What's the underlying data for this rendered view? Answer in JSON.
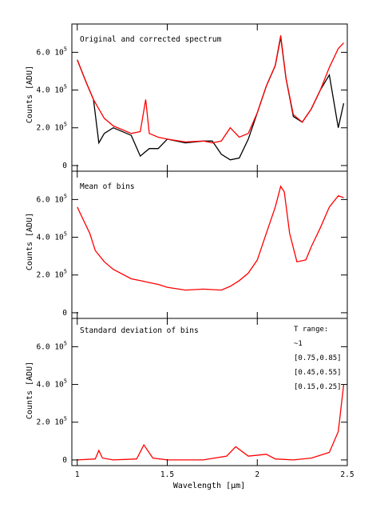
{
  "colors": {
    "t1": "#ff0000",
    "t2": "#00e5ff",
    "t3": "#e000e0",
    "t4": "#00d000",
    "raw": "#000000"
  },
  "legend": {
    "title": "T range:",
    "items": [
      {
        "label": "~1",
        "color_key": "t1"
      },
      {
        "label": "[0.75,0.85]",
        "color_key": "t2"
      },
      {
        "label": "[0.45,0.55]",
        "color_key": "t3"
      },
      {
        "label": "[0.15,0.25]",
        "color_key": "t4"
      }
    ]
  },
  "chart_data": [
    {
      "type": "line",
      "title": "Original and corrected spectrum",
      "xlabel": "",
      "ylabel": "Counts [ADU]",
      "xlim": [
        0.97,
        2.5
      ],
      "ylim": [
        -30000,
        750000
      ],
      "y_ticks": [
        0,
        200000,
        400000,
        600000
      ],
      "y_tick_labels": [
        {
          "mant": "0",
          "exp": ""
        },
        {
          "mant": "2.0 10",
          "exp": "5"
        },
        {
          "mant": "4.0 10",
          "exp": "5"
        },
        {
          "mant": "6.0 10",
          "exp": "5"
        }
      ],
      "series": [
        {
          "color_key": "raw",
          "x": [
            1.0,
            1.05,
            1.09,
            1.12,
            1.15,
            1.2,
            1.3,
            1.35,
            1.4,
            1.45,
            1.5,
            1.6,
            1.7,
            1.75,
            1.8,
            1.85,
            1.9,
            1.95,
            2.0,
            2.05,
            2.1,
            2.13,
            2.16,
            2.2,
            2.25,
            2.3,
            2.35,
            2.4,
            2.45,
            2.48
          ],
          "y": [
            560000,
            440000,
            350000,
            120000,
            170000,
            200000,
            160000,
            50000,
            90000,
            90000,
            140000,
            120000,
            130000,
            130000,
            60000,
            30000,
            40000,
            140000,
            280000,
            420000,
            530000,
            680000,
            460000,
            260000,
            230000,
            300000,
            400000,
            480000,
            200000,
            330000
          ]
        },
        {
          "color_key": "t1",
          "x": [
            1.0,
            1.05,
            1.09,
            1.12,
            1.15,
            1.2,
            1.3,
            1.35,
            1.38,
            1.4,
            1.45,
            1.5,
            1.6,
            1.7,
            1.75,
            1.8,
            1.85,
            1.9,
            1.95,
            2.0,
            2.05,
            2.1,
            2.13,
            2.16,
            2.2,
            2.25,
            2.3,
            2.35,
            2.4,
            2.45,
            2.48
          ],
          "y": [
            560000,
            440000,
            350000,
            300000,
            250000,
            210000,
            170000,
            180000,
            350000,
            170000,
            150000,
            140000,
            125000,
            130000,
            120000,
            130000,
            200000,
            150000,
            170000,
            280000,
            420000,
            530000,
            690000,
            460000,
            270000,
            230000,
            300000,
            400000,
            520000,
            620000,
            650000
          ]
        }
      ]
    },
    {
      "type": "line",
      "title": "Mean of bins",
      "xlabel": "",
      "ylabel": "Counts [ADU]",
      "xlim": [
        0.97,
        2.5
      ],
      "ylim": [
        -30000,
        750000
      ],
      "y_ticks": [
        0,
        200000,
        400000,
        600000
      ],
      "y_tick_labels": [
        {
          "mant": "0",
          "exp": ""
        },
        {
          "mant": "2.0 10",
          "exp": "5"
        },
        {
          "mant": "4.0 10",
          "exp": "5"
        },
        {
          "mant": "6.0 10",
          "exp": "5"
        }
      ],
      "series": [
        {
          "color_key": "t1",
          "x": [
            1.0,
            1.03,
            1.07,
            1.1,
            1.15,
            1.2,
            1.3,
            1.35,
            1.4,
            1.45,
            1.5,
            1.6,
            1.7,
            1.8,
            1.85,
            1.9,
            1.95,
            2.0,
            2.05,
            2.1,
            2.13,
            2.15,
            2.18,
            2.22,
            2.27,
            2.3,
            2.35,
            2.4,
            2.45,
            2.48
          ],
          "y": [
            560000,
            500000,
            420000,
            330000,
            270000,
            230000,
            180000,
            170000,
            160000,
            150000,
            135000,
            120000,
            125000,
            120000,
            140000,
            170000,
            210000,
            280000,
            420000,
            560000,
            670000,
            640000,
            420000,
            270000,
            280000,
            350000,
            450000,
            560000,
            620000,
            610000
          ]
        }
      ]
    },
    {
      "type": "line",
      "title": "Standard deviation of bins",
      "xlabel": "Wavelength [μm]",
      "ylabel": "Counts [ADU]",
      "xlim": [
        0.97,
        2.5
      ],
      "ylim": [
        -30000,
        750000
      ],
      "x_ticks": [
        1,
        1.5,
        2,
        2.5
      ],
      "x_tick_labels": [
        "1",
        "1.5",
        "2",
        "2.5"
      ],
      "y_ticks": [
        0,
        200000,
        400000,
        600000
      ],
      "y_tick_labels": [
        {
          "mant": "0",
          "exp": ""
        },
        {
          "mant": "2.0 10",
          "exp": "5"
        },
        {
          "mant": "4.0 10",
          "exp": "5"
        },
        {
          "mant": "6.0 10",
          "exp": "5"
        }
      ],
      "series": [
        {
          "color_key": "t1",
          "x": [
            1.0,
            1.1,
            1.12,
            1.14,
            1.2,
            1.33,
            1.37,
            1.42,
            1.5,
            1.7,
            1.83,
            1.88,
            1.95,
            2.05,
            2.1,
            2.2,
            2.3,
            2.4,
            2.45,
            2.48
          ],
          "y": [
            0,
            5000,
            50000,
            10000,
            0,
            5000,
            80000,
            10000,
            0,
            0,
            20000,
            70000,
            20000,
            30000,
            5000,
            0,
            10000,
            40000,
            150000,
            400000
          ]
        }
      ]
    }
  ]
}
